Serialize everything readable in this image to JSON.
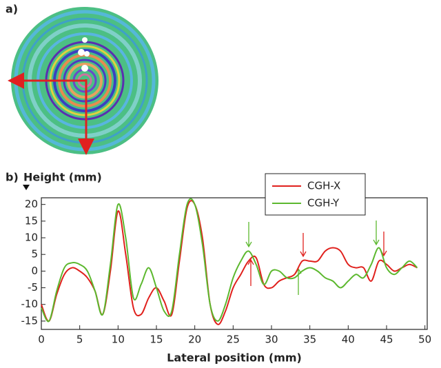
{
  "labels": {
    "a": "a)",
    "b": "b)"
  },
  "chart_data": {
    "type": "line",
    "ylabel": "Height (mm)",
    "xlabel": "Lateral position (mm)",
    "x": [
      0,
      1,
      2,
      3,
      4,
      5,
      6,
      7,
      8,
      9,
      10,
      11,
      12,
      13,
      14,
      15,
      16,
      17,
      18,
      19,
      20,
      21,
      22,
      23,
      24,
      25,
      26,
      27,
      28,
      29,
      30,
      31,
      32,
      33,
      34,
      35,
      36,
      37,
      38,
      39,
      40,
      41,
      42,
      43,
      44,
      45,
      46,
      47,
      48,
      49
    ],
    "series": [
      {
        "name": "CGH-X",
        "color": "#e0201c",
        "values": [
          -10,
          -15,
          -7,
          -1,
          1,
          0,
          -2,
          -6,
          -13,
          0,
          18,
          5,
          -11,
          -13,
          -8,
          -5,
          -9,
          -13,
          3,
          19,
          20,
          10,
          -10,
          -16,
          -12,
          -5,
          -1,
          3,
          4,
          -4,
          -5,
          -3,
          -2,
          -1,
          3,
          3,
          3,
          6,
          7,
          6,
          2,
          1,
          1,
          -3,
          3,
          2,
          0,
          1,
          2,
          1
        ]
      },
      {
        "name": "CGH-Y",
        "color": "#5cb82e",
        "values": [
          -11,
          -15,
          -6,
          1,
          2.5,
          2,
          0,
          -6,
          -13,
          2,
          20,
          10,
          -8,
          -4,
          1,
          -5,
          -12,
          -12,
          5,
          20,
          20,
          8,
          -10,
          -15,
          -10,
          -2,
          3,
          6,
          2,
          -4,
          0,
          0,
          -2,
          -2,
          0,
          1,
          0,
          -2,
          -3,
          -5,
          -3,
          -1,
          -2,
          2,
          7,
          1,
          -1,
          1,
          3,
          1
        ]
      }
    ],
    "xlim": [
      0,
      50.3
    ],
    "ylim": [
      -17.5,
      22
    ],
    "xticks": [
      0,
      5,
      10,
      15,
      20,
      25,
      30,
      35,
      40,
      45,
      50
    ],
    "yticks": [
      -15,
      -10,
      -5,
      0,
      5,
      10,
      15,
      20
    ]
  }
}
